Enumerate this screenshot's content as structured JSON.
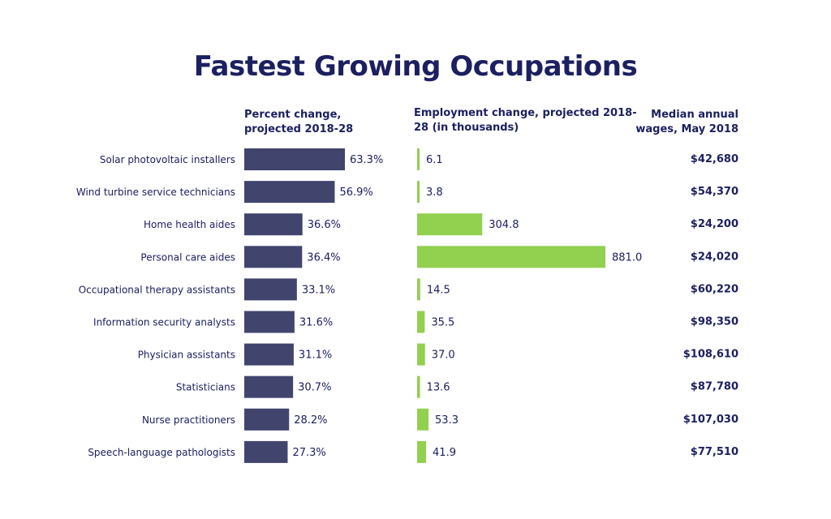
{
  "title": "Fastest Growing Occupations",
  "headers": {
    "percent": "Percent change, projected 2018-28",
    "employment": "Employment change, projected 2018-28 (in thousands)",
    "wages": "Median annual wages, May 2018"
  },
  "colors": {
    "percent_bar": "#41456e",
    "employment_bar": "#92d050",
    "text": "#1c2060"
  },
  "chart_data": {
    "type": "bar",
    "categories": [
      "Solar photovoltaic installers",
      "Wind turbine service technicians",
      "Home health aides",
      "Personal care aides",
      "Occupational therapy assistants",
      "Information security analysts",
      "Physician assistants",
      "Statisticians",
      "Nurse practitioners",
      "Speech-language pathologists"
    ],
    "series": [
      {
        "name": "Percent change, projected 2018-28",
        "values": [
          63.3,
          56.9,
          36.6,
          36.4,
          33.1,
          31.6,
          31.1,
          30.7,
          28.2,
          27.3
        ],
        "labels": [
          "63.3%",
          "56.9%",
          "36.6%",
          "36.4%",
          "33.1%",
          "31.6%",
          "31.1%",
          "30.7%",
          "28.2%",
          "27.3%"
        ]
      },
      {
        "name": "Employment change, projected 2018-28 (in thousands)",
        "values": [
          6.1,
          3.8,
          304.8,
          881.0,
          14.5,
          35.5,
          37.0,
          13.6,
          53.3,
          41.9
        ],
        "labels": [
          "6.1",
          "3.8",
          "304.8",
          "881.0",
          "14.5",
          "35.5",
          "37.0",
          "13.6",
          "53.3",
          "41.9"
        ]
      }
    ],
    "wages": [
      "$42,680",
      "$54,370",
      "$24,200",
      "$24,020",
      "$60,220",
      "$98,350",
      "$108,610",
      "$87,780",
      "$107,030",
      "$77,510"
    ]
  }
}
